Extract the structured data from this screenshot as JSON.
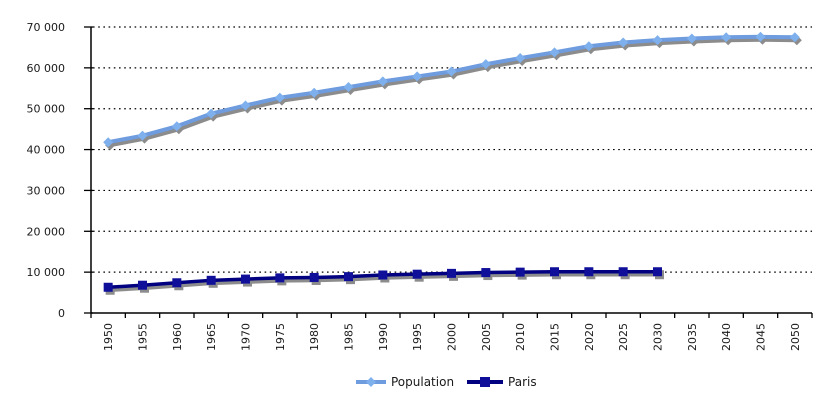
{
  "chart_data": {
    "type": "line",
    "title": "",
    "xlabel": "",
    "ylabel": "",
    "categories": [
      "1950",
      "1955",
      "1960",
      "1965",
      "1970",
      "1975",
      "1980",
      "1985",
      "1990",
      "1995",
      "2000",
      "2005",
      "2010",
      "2015",
      "2020",
      "2025",
      "2030",
      "2035",
      "2040",
      "2045",
      "2050"
    ],
    "series": [
      {
        "name": "Population",
        "marker": "diamond",
        "line_color": "#6E9CDE",
        "marker_color": "#7FB0EE",
        "values": [
          41800,
          43400,
          45700,
          48800,
          50800,
          52700,
          53900,
          55300,
          56700,
          57900,
          59100,
          60900,
          62400,
          63800,
          65300,
          66200,
          66800,
          67200,
          67500,
          67600,
          67500
        ]
      },
      {
        "name": "Paris",
        "marker": "square",
        "line_color": "#000080",
        "marker_color": "#0F0F9A",
        "values": [
          6300,
          6800,
          7400,
          8000,
          8300,
          8600,
          8700,
          8900,
          9300,
          9500,
          9700,
          9900,
          10000,
          10100,
          10100,
          10100,
          10100
        ]
      }
    ],
    "ylim": [
      0,
      70000
    ],
    "y_ticks": [
      0,
      10000,
      20000,
      30000,
      40000,
      50000,
      60000,
      70000
    ],
    "y_tick_labels": [
      "0",
      "10 000",
      "20 000",
      "30 000",
      "40 000",
      "50 000",
      "60 000",
      "70 000"
    ],
    "grid": "horizontal-dotted",
    "legend_position": "bottom",
    "shadow": true,
    "shadow_color": "#8C8C8C",
    "axis_color": "#000000",
    "text_color": "#1A1A1A",
    "background": "#FFFFFF"
  }
}
